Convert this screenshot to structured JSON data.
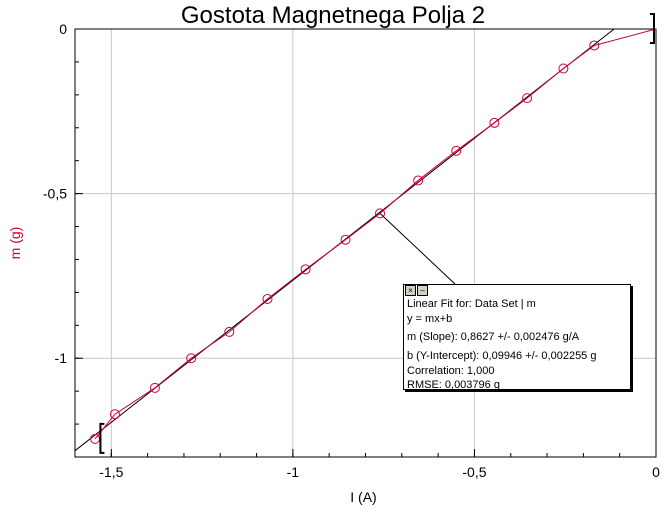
{
  "chart_data": {
    "type": "scatter",
    "title": "Gostota Magnetnega Polja 2",
    "xlabel": "I (A)",
    "ylabel": "m (g)",
    "xlim": [
      -1.6,
      0
    ],
    "ylim": [
      -1.3,
      0
    ],
    "x_ticks": [
      -1.5,
      -1,
      -0.5,
      0
    ],
    "x_tick_labels": [
      "-1,5",
      "-1",
      "-0,5",
      "0"
    ],
    "y_ticks": [
      0,
      -0.5,
      -1
    ],
    "y_tick_labels": [
      "0",
      "-0,5",
      "-1"
    ],
    "grid": true,
    "colors": {
      "data": "#cc0033",
      "fit": "#000000",
      "ylabel": "#cc0033"
    },
    "series": [
      {
        "marker": "circle",
        "connected": true,
        "x": [
          -1.545,
          -1.49,
          -1.38,
          -1.28,
          -1.175,
          -1.07,
          -0.965,
          -0.855,
          -0.76,
          -0.655,
          -0.55,
          -0.445,
          -0.355,
          -0.255,
          -0.17,
          0
        ],
        "y": [
          -1.245,
          -1.17,
          -1.09,
          -1.0,
          -0.92,
          -0.82,
          -0.73,
          -0.64,
          -0.56,
          -0.46,
          -0.37,
          -0.285,
          -0.21,
          -0.12,
          -0.05,
          0
        ]
      }
    ],
    "fit": {
      "slope": 0.8627,
      "intercept": 0.09946
    }
  },
  "fit_box": {
    "line1": "Linear Fit for: Data Set | m",
    "line2": "y = mx+b",
    "line3": "m (Slope): 0,8627 +/- 0,002476 g/A",
    "line4": "b (Y-Intercept): 0,09946 +/- 0,002255 g",
    "line5": "Correlation: 1,000",
    "line6": "RMSE: 0,003796 g",
    "close_glyph": "×",
    "min_glyph": "–"
  }
}
